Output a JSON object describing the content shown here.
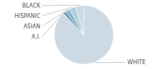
{
  "chart_data": {
    "type": "pie",
    "categories": [
      "WHITE",
      "A.I.",
      "ASIAN",
      "HISPANIC",
      "BLACK"
    ],
    "values": [
      88,
      1.5,
      2.5,
      3.5,
      4.5
    ],
    "colors": [
      "#cdd9e3",
      "#5e8fa8",
      "#89b5c8",
      "#afd0de",
      "#c5dce6"
    ]
  }
}
